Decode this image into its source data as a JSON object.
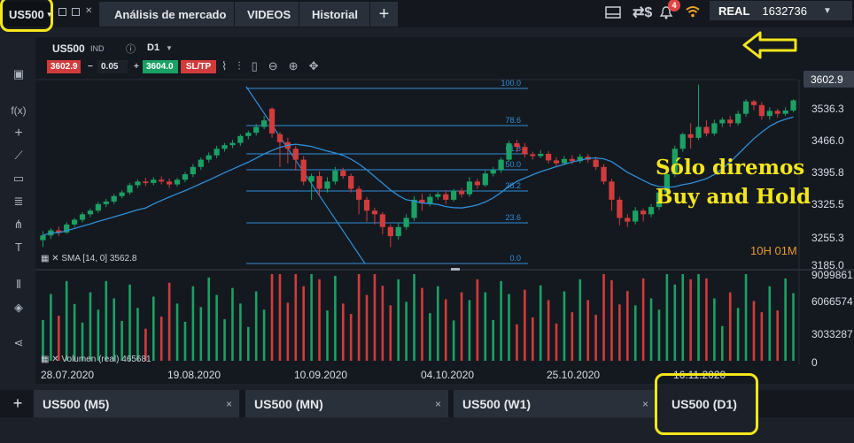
{
  "topbar": {
    "symbol": "US500",
    "tabs": [
      "Análisis de mercado",
      "VIDEOS",
      "Historial"
    ],
    "add_tab": "+",
    "notification_count": "4",
    "account_type": "REAL",
    "account_balance": "1632736",
    "icons": [
      "layout-icon",
      "dollar-exchange-icon",
      "bell-icon",
      "wifi-icon",
      "caret-down-icon"
    ]
  },
  "chart": {
    "symbol": "US500",
    "indicator_tag": "IND",
    "timeframe": "D1",
    "sell_price": "3602.9",
    "spread_volume": "0.05",
    "buy_price": "3604.0",
    "sltp_label": "SL/TP",
    "current_price": "3602.9",
    "price_axis": [
      "3536.3",
      "3466.0",
      "3395.8",
      "3325.5",
      "3255.3",
      "3185.0"
    ],
    "volume_axis": [
      "9099861",
      "6066574",
      "3033287",
      "0"
    ],
    "dates": [
      "28.07.2020",
      "19.08.2020",
      "10.09.2020",
      "04.10.2020",
      "25.10.2020",
      "16.11.2020"
    ],
    "fib_levels": [
      "100.0",
      "78.6",
      "61.8",
      "50.0",
      "38.2",
      "23.6",
      "0.0"
    ],
    "sma_label": "SMA [14, 0] 3562.8",
    "volume_label": "Volumen (real) 465681",
    "countdown": "10H 01M",
    "caption_line1": "Sólo diremos",
    "caption_line2": "Buy and Hold",
    "colors": {
      "up": "#1aa164",
      "down": "#d23b3b",
      "line": "#2f8fd8",
      "highlight": "#f4e61a"
    }
  },
  "bottom_tabs": {
    "add": "+",
    "items": [
      "US500 (M5)",
      "US500 (MN)",
      "US500 (W1)",
      "US500 (D1)"
    ],
    "close": "×"
  },
  "chart_data": {
    "type": "candlestick",
    "x": [
      "28.07.2020",
      "19.08.2020",
      "10.09.2020",
      "04.10.2020",
      "25.10.2020",
      "16.11.2020"
    ],
    "ylim": [
      3150,
      3660
    ],
    "candles": [
      [
        3219,
        3232,
        3200,
        3244
      ],
      [
        3232,
        3246,
        3222,
        3252
      ],
      [
        3246,
        3240,
        3230,
        3256
      ],
      [
        3240,
        3262,
        3236,
        3268
      ],
      [
        3262,
        3275,
        3255,
        3280
      ],
      [
        3275,
        3290,
        3268,
        3296
      ],
      [
        3290,
        3300,
        3282,
        3306
      ],
      [
        3300,
        3318,
        3294,
        3324
      ],
      [
        3318,
        3325,
        3310,
        3332
      ],
      [
        3325,
        3340,
        3318,
        3346
      ],
      [
        3340,
        3350,
        3334,
        3356
      ],
      [
        3350,
        3370,
        3344,
        3376
      ],
      [
        3370,
        3380,
        3362,
        3386
      ],
      [
        3380,
        3376,
        3368,
        3390
      ],
      [
        3376,
        3385,
        3370,
        3392
      ],
      [
        3385,
        3380,
        3372,
        3394
      ],
      [
        3380,
        3372,
        3362,
        3388
      ],
      [
        3372,
        3385,
        3366,
        3390
      ],
      [
        3385,
        3400,
        3378,
        3406
      ],
      [
        3400,
        3420,
        3392,
        3428
      ],
      [
        3420,
        3440,
        3412,
        3446
      ],
      [
        3440,
        3452,
        3432,
        3460
      ],
      [
        3452,
        3470,
        3444,
        3478
      ],
      [
        3470,
        3480,
        3462,
        3486
      ],
      [
        3480,
        3486,
        3472,
        3494
      ],
      [
        3486,
        3505,
        3478,
        3510
      ],
      [
        3505,
        3514,
        3496,
        3520
      ],
      [
        3514,
        3530,
        3506,
        3538
      ],
      [
        3530,
        3548,
        3524,
        3560
      ],
      [
        3580,
        3512,
        3500,
        3584
      ],
      [
        3510,
        3488,
        3420,
        3516
      ],
      [
        3488,
        3470,
        3430,
        3500
      ],
      [
        3470,
        3440,
        3410,
        3478
      ],
      [
        3440,
        3380,
        3370,
        3450
      ],
      [
        3380,
        3395,
        3330,
        3402
      ],
      [
        3395,
        3360,
        3340,
        3408
      ],
      [
        3360,
        3380,
        3350,
        3392
      ],
      [
        3380,
        3410,
        3372,
        3420
      ],
      [
        3410,
        3395,
        3388,
        3418
      ],
      [
        3395,
        3360,
        3350,
        3402
      ],
      [
        3360,
        3330,
        3290,
        3368
      ],
      [
        3330,
        3300,
        3270,
        3338
      ],
      [
        3300,
        3290,
        3262,
        3308
      ],
      [
        3290,
        3255,
        3235,
        3296
      ],
      [
        3255,
        3230,
        3200,
        3262
      ],
      [
        3230,
        3255,
        3220,
        3268
      ],
      [
        3255,
        3280,
        3248,
        3290
      ],
      [
        3280,
        3330,
        3272,
        3340
      ],
      [
        3330,
        3320,
        3300,
        3346
      ],
      [
        3320,
        3338,
        3312,
        3346
      ],
      [
        3338,
        3345,
        3330,
        3352
      ],
      [
        3345,
        3330,
        3318,
        3356
      ],
      [
        3330,
        3355,
        3325,
        3360
      ],
      [
        3355,
        3345,
        3336,
        3362
      ],
      [
        3345,
        3380,
        3338,
        3392
      ],
      [
        3380,
        3370,
        3360,
        3388
      ],
      [
        3370,
        3402,
        3366,
        3410
      ],
      [
        3402,
        3412,
        3394,
        3420
      ],
      [
        3412,
        3440,
        3404,
        3446
      ],
      [
        3440,
        3485,
        3434,
        3492
      ],
      [
        3485,
        3475,
        3460,
        3494
      ],
      [
        3475,
        3455,
        3446,
        3486
      ],
      [
        3455,
        3450,
        3440,
        3462
      ],
      [
        3450,
        3456,
        3444,
        3466
      ],
      [
        3456,
        3438,
        3430,
        3464
      ],
      [
        3438,
        3430,
        3420,
        3446
      ],
      [
        3430,
        3442,
        3424,
        3450
      ],
      [
        3442,
        3436,
        3428,
        3452
      ],
      [
        3436,
        3448,
        3430,
        3456
      ],
      [
        3448,
        3440,
        3432,
        3456
      ],
      [
        3440,
        3420,
        3412,
        3448
      ],
      [
        3420,
        3380,
        3372,
        3428
      ],
      [
        3380,
        3330,
        3300,
        3388
      ],
      [
        3330,
        3280,
        3260,
        3338
      ],
      [
        3280,
        3270,
        3255,
        3290
      ],
      [
        3270,
        3300,
        3262,
        3310
      ],
      [
        3300,
        3290,
        3270,
        3306
      ],
      [
        3290,
        3310,
        3282,
        3318
      ],
      [
        3310,
        3350,
        3302,
        3358
      ],
      [
        3350,
        3400,
        3342,
        3410
      ],
      [
        3400,
        3470,
        3392,
        3478
      ],
      [
        3470,
        3510,
        3462,
        3514
      ],
      [
        3510,
        3500,
        3470,
        3540
      ],
      [
        3500,
        3530,
        3494,
        3646
      ],
      [
        3530,
        3512,
        3504,
        3548
      ],
      [
        3512,
        3540,
        3506,
        3550
      ],
      [
        3540,
        3550,
        3530,
        3556
      ],
      [
        3550,
        3540,
        3530,
        3560
      ],
      [
        3540,
        3566,
        3534,
        3574
      ],
      [
        3566,
        3600,
        3558,
        3606
      ],
      [
        3600,
        3590,
        3576,
        3604
      ],
      [
        3590,
        3560,
        3550,
        3598
      ],
      [
        3560,
        3574,
        3550,
        3584
      ],
      [
        3574,
        3566,
        3556,
        3580
      ],
      [
        3566,
        3575,
        3560,
        3584
      ],
      [
        3575,
        3602.9,
        3570,
        3606
      ]
    ]
  }
}
